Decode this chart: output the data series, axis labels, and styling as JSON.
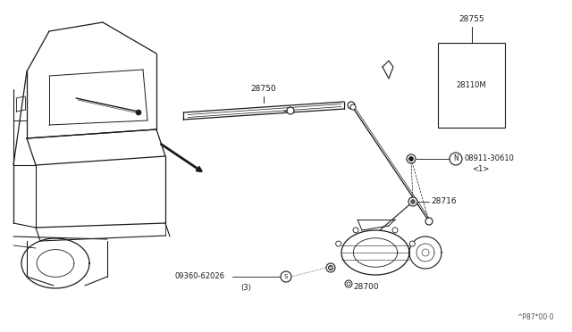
{
  "bg_color": "#ffffff",
  "line_color": "#1a1a1a",
  "fig_width": 6.4,
  "fig_height": 3.72,
  "dpi": 100,
  "watermark": "^P87*00·0",
  "label_28750": "28750",
  "label_28755": "28755",
  "label_28110M": "28110M",
  "label_nut": "08911-30610",
  "label_nut_qty": "<1>",
  "label_28716": "28716",
  "label_28700": "28700",
  "label_bolt": "09360-62026",
  "label_bolt_qty": "(3)"
}
